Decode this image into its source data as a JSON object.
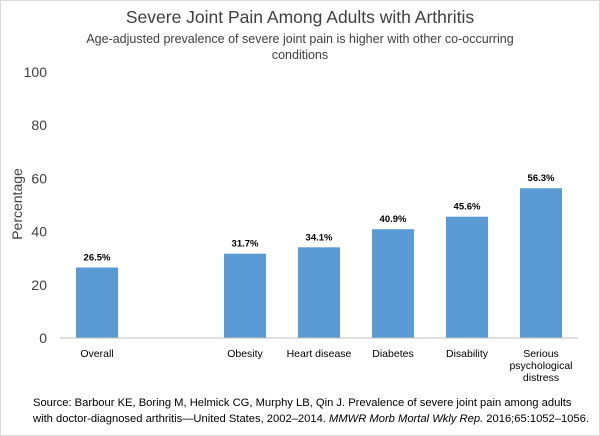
{
  "chart_data": {
    "type": "bar",
    "title": "Severe Joint Pain Among Adults with Arthritis",
    "subtitle": "Age-adjusted prevalence of severe joint pain is higher with other co-occurring conditions",
    "xlabel": "",
    "ylabel": "Percentage",
    "ylim": [
      0,
      100
    ],
    "yticks": [
      0,
      20,
      40,
      60,
      80,
      100
    ],
    "grid": false,
    "categories": [
      "Overall",
      "",
      "Obesity",
      "Heart disease",
      "Diabetes",
      "Disability",
      "Serious psychological distress"
    ],
    "category_lines": [
      [
        "Overall"
      ],
      [],
      [
        "Obesity"
      ],
      [
        "Heart disease"
      ],
      [
        "Diabetes"
      ],
      [
        "Disability"
      ],
      [
        "Serious",
        "psychological",
        "distress"
      ]
    ],
    "values": [
      26.5,
      null,
      31.7,
      34.1,
      40.9,
      45.6,
      56.3
    ],
    "data_labels": [
      "26.5%",
      "",
      "31.7%",
      "34.1%",
      "40.9%",
      "45.6%",
      "56.3%"
    ],
    "bar_color": "#5b9bd5"
  },
  "source": {
    "prefix": "Source: Barbour KE, Boring M, Helmick CG, Murphy LB, Qin J. Prevalence of severe joint pain among adults with doctor-diagnosed arthritis—United States, 2002–2014. ",
    "journal": "MMWR Morb Mortal Wkly Rep.",
    "suffix": " 2016;65:1052–1056."
  }
}
